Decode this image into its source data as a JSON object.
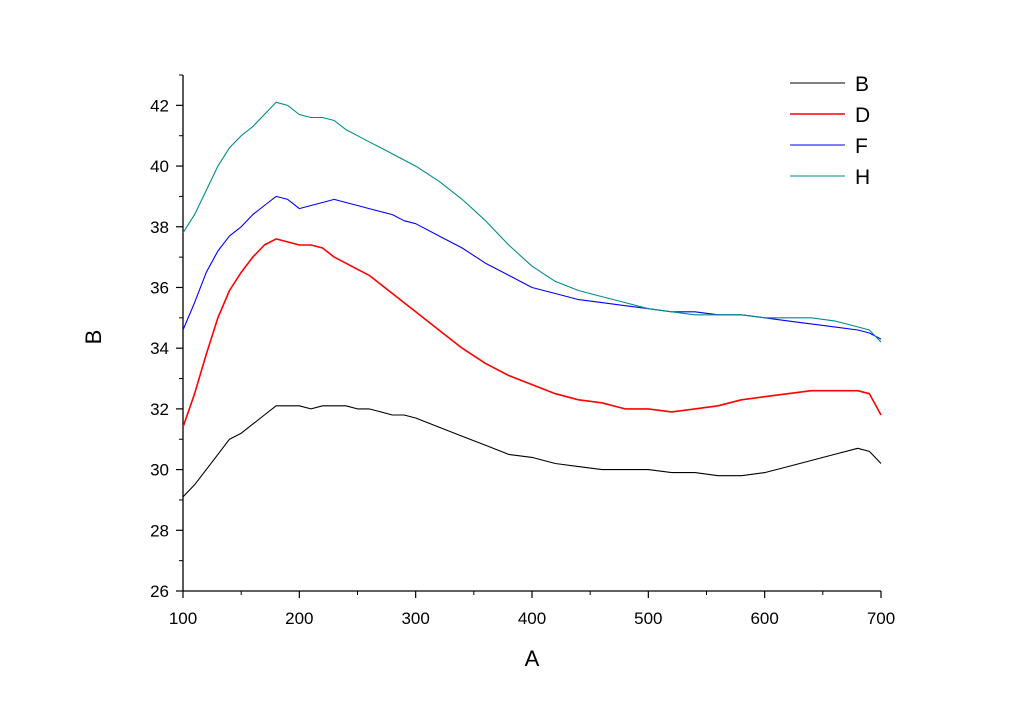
{
  "chart_data": {
    "type": "line",
    "title": "",
    "xlabel": "A",
    "ylabel": "B",
    "xlim": [
      100,
      700
    ],
    "ylim": [
      26,
      43
    ],
    "xticks": [
      100,
      200,
      300,
      400,
      500,
      600,
      700
    ],
    "yticks": [
      26,
      28,
      30,
      32,
      34,
      36,
      38,
      40,
      42
    ],
    "grid": false,
    "legend_position": "top-right",
    "series": [
      {
        "name": "B",
        "color": "#000000",
        "x": [
          100,
          110,
          120,
          130,
          140,
          150,
          160,
          170,
          180,
          190,
          200,
          210,
          220,
          230,
          240,
          250,
          260,
          270,
          280,
          290,
          300,
          320,
          340,
          360,
          380,
          400,
          420,
          440,
          460,
          480,
          500,
          520,
          540,
          560,
          580,
          600,
          620,
          640,
          660,
          680,
          690,
          700
        ],
        "values": [
          29.1,
          29.5,
          30.0,
          30.5,
          31.0,
          31.2,
          31.5,
          31.8,
          32.1,
          32.1,
          32.1,
          32.0,
          32.1,
          32.1,
          32.1,
          32.0,
          32.0,
          31.9,
          31.8,
          31.8,
          31.7,
          31.4,
          31.1,
          30.8,
          30.5,
          30.4,
          30.2,
          30.1,
          30.0,
          30.0,
          30.0,
          29.9,
          29.9,
          29.8,
          29.8,
          29.9,
          30.1,
          30.3,
          30.5,
          30.7,
          30.6,
          30.2
        ]
      },
      {
        "name": "D",
        "color": "#ff0000",
        "x": [
          100,
          110,
          120,
          130,
          140,
          150,
          160,
          170,
          180,
          190,
          200,
          210,
          220,
          230,
          240,
          250,
          260,
          270,
          280,
          290,
          300,
          320,
          340,
          360,
          380,
          400,
          420,
          440,
          460,
          480,
          500,
          520,
          540,
          560,
          580,
          600,
          620,
          640,
          660,
          680,
          690,
          700
        ],
        "values": [
          31.4,
          32.5,
          33.8,
          35.0,
          35.9,
          36.5,
          37.0,
          37.4,
          37.6,
          37.5,
          37.4,
          37.4,
          37.3,
          37.0,
          36.8,
          36.6,
          36.4,
          36.1,
          35.8,
          35.5,
          35.2,
          34.6,
          34.0,
          33.5,
          33.1,
          32.8,
          32.5,
          32.3,
          32.2,
          32.0,
          32.0,
          31.9,
          32.0,
          32.1,
          32.3,
          32.4,
          32.5,
          32.6,
          32.6,
          32.6,
          32.5,
          31.8
        ]
      },
      {
        "name": "F",
        "color": "#0000ff",
        "x": [
          100,
          110,
          120,
          130,
          140,
          150,
          160,
          170,
          180,
          190,
          200,
          210,
          220,
          230,
          240,
          250,
          260,
          270,
          280,
          290,
          300,
          320,
          340,
          360,
          380,
          400,
          420,
          440,
          460,
          480,
          500,
          520,
          540,
          560,
          580,
          600,
          620,
          640,
          660,
          680,
          690,
          700
        ],
        "values": [
          34.6,
          35.5,
          36.5,
          37.2,
          37.7,
          38.0,
          38.4,
          38.7,
          39.0,
          38.9,
          38.6,
          38.7,
          38.8,
          38.9,
          38.8,
          38.7,
          38.6,
          38.5,
          38.4,
          38.2,
          38.1,
          37.7,
          37.3,
          36.8,
          36.4,
          36.0,
          35.8,
          35.6,
          35.5,
          35.4,
          35.3,
          35.2,
          35.2,
          35.1,
          35.1,
          35.0,
          34.9,
          34.8,
          34.7,
          34.6,
          34.5,
          34.3
        ]
      },
      {
        "name": "H",
        "color": "#008b8b",
        "x": [
          100,
          110,
          120,
          130,
          140,
          150,
          160,
          170,
          180,
          190,
          200,
          210,
          220,
          230,
          240,
          250,
          260,
          270,
          280,
          290,
          300,
          320,
          340,
          360,
          380,
          400,
          420,
          440,
          460,
          480,
          500,
          520,
          540,
          560,
          580,
          600,
          620,
          640,
          660,
          680,
          690,
          700
        ],
        "values": [
          37.8,
          38.4,
          39.2,
          40.0,
          40.6,
          41.0,
          41.3,
          41.7,
          42.1,
          42.0,
          41.7,
          41.6,
          41.6,
          41.5,
          41.2,
          41.0,
          40.8,
          40.6,
          40.4,
          40.2,
          40.0,
          39.5,
          38.9,
          38.2,
          37.4,
          36.7,
          36.2,
          35.9,
          35.7,
          35.5,
          35.3,
          35.2,
          35.1,
          35.1,
          35.1,
          35.0,
          35.0,
          35.0,
          34.9,
          34.7,
          34.6,
          34.2
        ]
      }
    ]
  }
}
